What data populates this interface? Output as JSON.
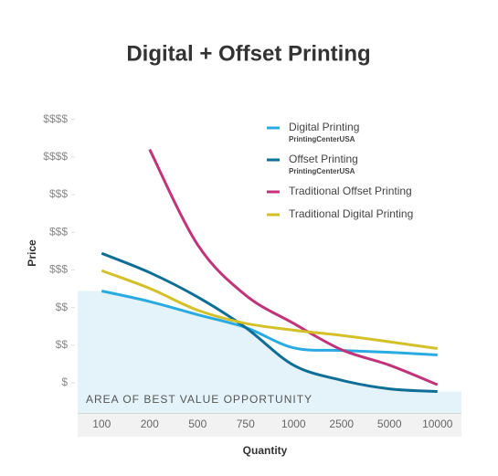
{
  "chart_data": {
    "type": "line",
    "title": "Digital + Offset Printing",
    "x_label": "Quantity",
    "y_label": "Price",
    "annotation": "AREA OF BEST VALUE OPPORTUNITY",
    "categories": [
      "100",
      "200",
      "500",
      "750",
      "1000",
      "2500",
      "5000",
      "10000"
    ],
    "series": [
      {
        "name": "Digital Printing",
        "note": "PrintingCenterUSA",
        "color": "#29abe2",
        "values": [
          3.44,
          3.16,
          2.81,
          2.47,
          1.93,
          1.86,
          1.81,
          1.74
        ]
      },
      {
        "name": "Offset Printing",
        "note": "PrintingCenterUSA",
        "color": "#0e6e96",
        "values": [
          4.44,
          3.93,
          3.28,
          2.47,
          1.47,
          1.07,
          0.84,
          0.77
        ]
      },
      {
        "name": "Traditional Offset Printing",
        "color": "#c2347a",
        "values": [
          null,
          7.2,
          4.67,
          3.33,
          2.58,
          1.88,
          1.47,
          0.95
        ]
      },
      {
        "name": "Traditional Digital Printing",
        "color": "#d4c12a",
        "values": [
          3.98,
          3.51,
          2.93,
          2.58,
          2.4,
          2.26,
          2.09,
          1.91
        ]
      }
    ],
    "ylim": [
      0.2,
      8.5
    ],
    "yticks": [
      {
        "value": 1,
        "label": "$"
      },
      {
        "value": 2,
        "label": "$$"
      },
      {
        "value": 3,
        "label": "$$"
      },
      {
        "value": 4,
        "label": "$$$"
      },
      {
        "value": 5,
        "label": "$$$"
      },
      {
        "value": 6,
        "label": "$$$"
      },
      {
        "value": 7,
        "label": "$$$$"
      },
      {
        "value": 8,
        "label": "$$$$"
      }
    ],
    "fill_color": "#e3f3f9"
  }
}
